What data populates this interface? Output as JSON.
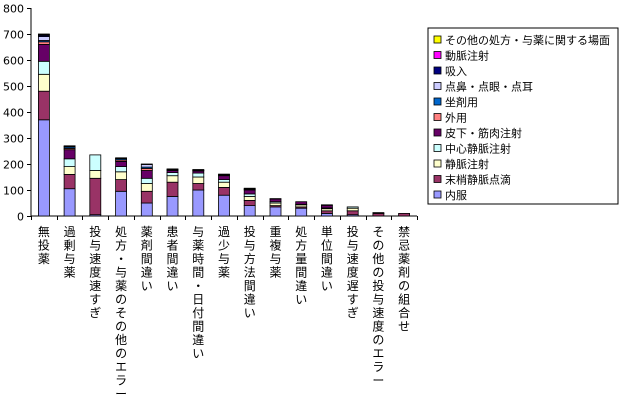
{
  "chart_data": {
    "type": "bar",
    "stacked": true,
    "ylim": [
      0,
      800
    ],
    "yticks": [
      0,
      100,
      200,
      300,
      400,
      500,
      600,
      700,
      800
    ],
    "grid": false,
    "legend_position": "right",
    "categories": [
      "無投薬",
      "過剰与薬",
      "投与速度速すぎ",
      "処方・与薬のその他のエラー",
      "薬剤間違い",
      "患者間違い",
      "与薬時間・日付間違い",
      "過少与薬",
      "投与方法間違い",
      "重複与薬",
      "処方量間違い",
      "単位間違い",
      "投与速度遅すぎ",
      "その他の投与速度のエラー",
      "禁忌薬剤の組合せ"
    ],
    "series": [
      {
        "name": "内服",
        "color": "#9999ff",
        "values": [
          370,
          105,
          5,
          95,
          50,
          75,
          100,
          80,
          40,
          35,
          30,
          10,
          5,
          0,
          0
        ]
      },
      {
        "name": "末梢静脈点滴",
        "color": "#993366",
        "values": [
          110,
          55,
          140,
          45,
          45,
          55,
          25,
          30,
          20,
          5,
          5,
          10,
          15,
          10,
          10
        ]
      },
      {
        "name": "静脈注射",
        "color": "#ffffcc",
        "values": [
          65,
          30,
          30,
          30,
          30,
          25,
          25,
          20,
          15,
          10,
          8,
          8,
          10,
          0,
          0
        ]
      },
      {
        "name": "中心静脈注射",
        "color": "#ccffff",
        "values": [
          50,
          30,
          60,
          20,
          20,
          12,
          15,
          10,
          10,
          5,
          2,
          3,
          5,
          0,
          0
        ]
      },
      {
        "name": "皮下・筋肉注射",
        "color": "#660066",
        "values": [
          65,
          35,
          0,
          20,
          30,
          8,
          8,
          15,
          15,
          10,
          10,
          10,
          0,
          3,
          0
        ]
      },
      {
        "name": "外用",
        "color": "#ff8080",
        "values": [
          10,
          5,
          0,
          5,
          8,
          2,
          2,
          2,
          2,
          0,
          0,
          0,
          0,
          0,
          0
        ]
      },
      {
        "name": "坐剤用",
        "color": "#0066cc",
        "values": [
          5,
          5,
          0,
          5,
          5,
          2,
          2,
          2,
          3,
          0,
          0,
          2,
          0,
          0,
          0
        ]
      },
      {
        "name": "点鼻・点眼・点耳",
        "color": "#ccccff",
        "values": [
          15,
          3,
          0,
          2,
          10,
          2,
          2,
          2,
          2,
          2,
          0,
          0,
          0,
          0,
          0
        ]
      },
      {
        "name": "吸入",
        "color": "#000080",
        "values": [
          5,
          2,
          0,
          2,
          2,
          0,
          0,
          0,
          0,
          0,
          0,
          0,
          0,
          0,
          0
        ]
      },
      {
        "name": "動脈注射",
        "color": "#ff00ff",
        "values": [
          3,
          0,
          0,
          0,
          0,
          0,
          0,
          0,
          0,
          0,
          0,
          0,
          0,
          0,
          0
        ]
      },
      {
        "name": "その他の処方・与薬に関する場面",
        "color": "#ffff00",
        "values": [
          2,
          0,
          0,
          0,
          0,
          0,
          0,
          0,
          0,
          0,
          0,
          0,
          0,
          0,
          0
        ]
      }
    ]
  }
}
